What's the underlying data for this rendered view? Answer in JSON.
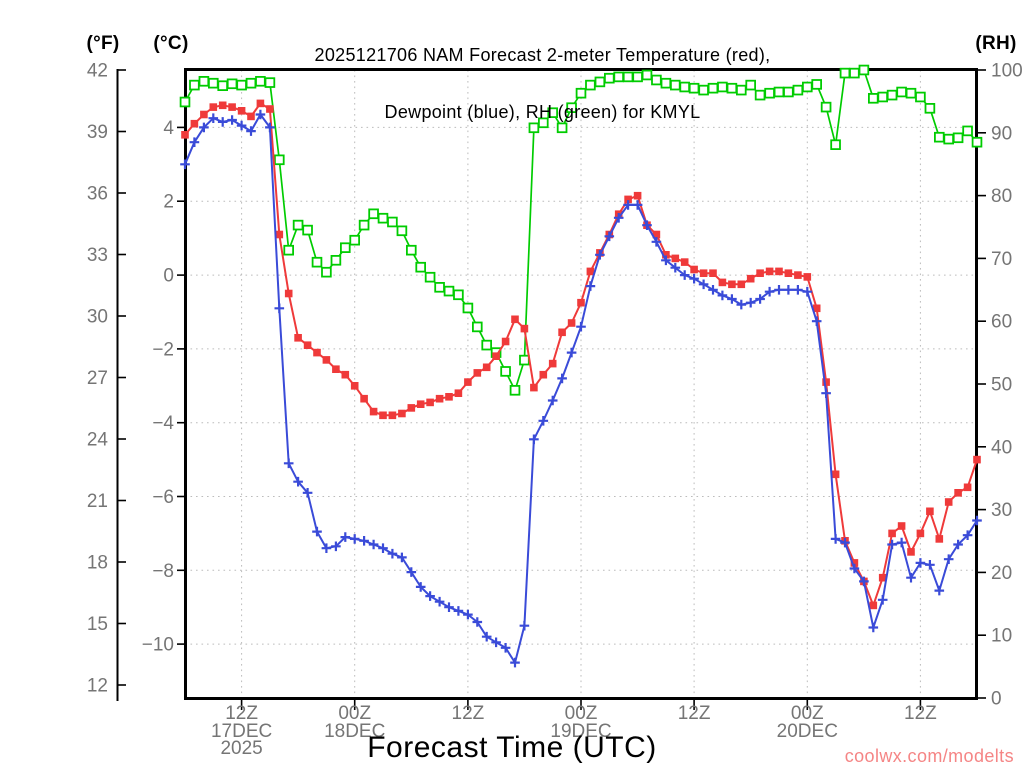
{
  "header": {
    "title_line1": "2025121706 NAM Forecast 2-meter Temperature (red),",
    "title_line2": "Dewpoint (blue), RH (green) for KMYL"
  },
  "axis_labels": {
    "fahrenheit": "(°F)",
    "celsius": "(°C)",
    "rh": "(RH)",
    "x": "Forecast Time (UTC)"
  },
  "watermark": "coolwx.com/modelts",
  "colors": {
    "temperature": "#ef3a3a",
    "dewpoint": "#3a4bd8",
    "rh": "#00cc00",
    "tick_label": "#757575",
    "grid": "#bcbcbc",
    "axis": "#000000",
    "watermark": "#f58585"
  },
  "chart_data": {
    "type": "line",
    "station": "KMYL",
    "model_run": "2025121706 NAM",
    "x_axis": {
      "unit": "forecast hour",
      "start_hour": 0,
      "end_hour": 84,
      "ticks": [
        {
          "hour": 6,
          "z": "12Z",
          "date": "17DEC",
          "year": "2025"
        },
        {
          "hour": 18,
          "z": "00Z",
          "date": "18DEC",
          "year": ""
        },
        {
          "hour": 30,
          "z": "12Z",
          "date": "",
          "year": ""
        },
        {
          "hour": 42,
          "z": "00Z",
          "date": "19DEC",
          "year": ""
        },
        {
          "hour": 54,
          "z": "12Z",
          "date": "",
          "year": ""
        },
        {
          "hour": 66,
          "z": "00Z",
          "date": "20DEC",
          "year": ""
        },
        {
          "hour": 78,
          "z": "12Z",
          "date": "",
          "year": ""
        }
      ]
    },
    "y_axis_fahrenheit": {
      "label": "(°F)",
      "ticks": [
        42,
        39,
        36,
        33,
        30,
        27,
        24,
        21,
        18,
        15,
        12
      ]
    },
    "y_axis_celsius": {
      "label": "(°C)",
      "ticks": [
        4,
        2,
        0,
        -2,
        -4,
        -6,
        -8,
        -10
      ],
      "top_value": 5.556,
      "bottom_value": -11.46
    },
    "y_axis_rh": {
      "label": "(RH)",
      "ticks": [
        100,
        90,
        80,
        70,
        60,
        50,
        40,
        30,
        20,
        10,
        0
      ],
      "range": [
        0,
        100
      ]
    },
    "series": [
      {
        "id": "rh",
        "name": "RH (green)",
        "unit": "%",
        "axis": "rh",
        "marker": "open-square",
        "values": [
          94.9,
          97.6,
          98.2,
          97.9,
          97.5,
          97.8,
          97.6,
          97.9,
          98.2,
          98.0,
          85.7,
          71.3,
          75.3,
          74.5,
          69.4,
          67.8,
          69.7,
          71.7,
          72.9,
          75.3,
          77.1,
          76.4,
          75.8,
          74.4,
          71.3,
          68.6,
          67.0,
          65.4,
          64.8,
          64.2,
          62.1,
          59.1,
          56.2,
          55.0,
          52.0,
          49.0,
          53.8,
          90.8,
          91.6,
          93.2,
          90.8,
          94.0,
          96.3,
          97.6,
          98.1,
          98.7,
          98.9,
          98.9,
          98.9,
          99.2,
          98.4,
          97.9,
          97.6,
          97.3,
          97.1,
          96.8,
          97.1,
          97.3,
          97.1,
          96.8,
          97.6,
          96.0,
          96.3,
          96.5,
          96.5,
          96.8,
          97.3,
          97.7,
          94.1,
          88.1,
          99.5,
          99.5,
          100.0,
          95.5,
          95.7,
          96.0,
          96.5,
          96.3,
          95.7,
          93.9,
          89.3,
          89.0,
          89.2,
          90.3,
          88.5
        ]
      },
      {
        "id": "temperature",
        "name": "2-meter Temperature (red)",
        "unit": "°C",
        "axis": "celsius",
        "marker": "filled-square",
        "values": [
          3.8,
          4.1,
          4.35,
          4.55,
          4.6,
          4.55,
          4.45,
          4.3,
          4.65,
          4.5,
          1.1,
          -0.5,
          -1.7,
          -1.9,
          -2.1,
          -2.3,
          -2.55,
          -2.7,
          -3.0,
          -3.35,
          -3.7,
          -3.8,
          -3.8,
          -3.75,
          -3.6,
          -3.5,
          -3.45,
          -3.35,
          -3.3,
          -3.2,
          -2.9,
          -2.65,
          -2.5,
          -2.2,
          -1.8,
          -1.2,
          -1.45,
          -3.05,
          -2.7,
          -2.4,
          -1.55,
          -1.3,
          -0.75,
          0.1,
          0.6,
          1.1,
          1.65,
          2.05,
          2.15,
          1.35,
          1.1,
          0.55,
          0.45,
          0.35,
          0.15,
          0.05,
          0.05,
          -0.2,
          -0.25,
          -0.25,
          -0.1,
          0.05,
          0.1,
          0.1,
          0.05,
          0.0,
          -0.05,
          -0.9,
          -2.9,
          -5.4,
          -7.2,
          -7.8,
          -8.3,
          -8.95,
          -8.2,
          -7.0,
          -6.8,
          -7.5,
          -7.0,
          -6.4,
          -7.15,
          -6.15,
          -5.9,
          -5.75,
          -5.0
        ]
      },
      {
        "id": "dewpoint",
        "name": "Dewpoint (blue)",
        "unit": "°C",
        "axis": "celsius",
        "marker": "plus",
        "values": [
          3.0,
          3.6,
          4.0,
          4.25,
          4.15,
          4.2,
          4.05,
          3.9,
          4.35,
          4.0,
          -0.9,
          -5.1,
          -5.6,
          -5.9,
          -6.95,
          -7.4,
          -7.35,
          -7.1,
          -7.15,
          -7.2,
          -7.3,
          -7.4,
          -7.55,
          -7.65,
          -8.05,
          -8.45,
          -8.7,
          -8.85,
          -9.0,
          -9.1,
          -9.2,
          -9.4,
          -9.8,
          -9.95,
          -10.1,
          -10.5,
          -9.5,
          -4.45,
          -3.95,
          -3.4,
          -2.8,
          -2.1,
          -1.4,
          -0.3,
          0.55,
          1.05,
          1.55,
          1.9,
          1.9,
          1.35,
          0.9,
          0.4,
          0.2,
          0.0,
          -0.1,
          -0.25,
          -0.4,
          -0.55,
          -0.65,
          -0.8,
          -0.75,
          -0.65,
          -0.45,
          -0.4,
          -0.4,
          -0.4,
          -0.45,
          -1.25,
          -3.2,
          -7.15,
          -7.25,
          -7.95,
          -8.3,
          -9.55,
          -8.8,
          -7.3,
          -7.25,
          -8.2,
          -7.8,
          -7.85,
          -8.55,
          -7.7,
          -7.3,
          -7.05,
          -6.65
        ]
      }
    ],
    "layout_hints": {
      "grid": "dotted at celsius ticks and 12-hour ticks",
      "legend": "named in title"
    }
  }
}
